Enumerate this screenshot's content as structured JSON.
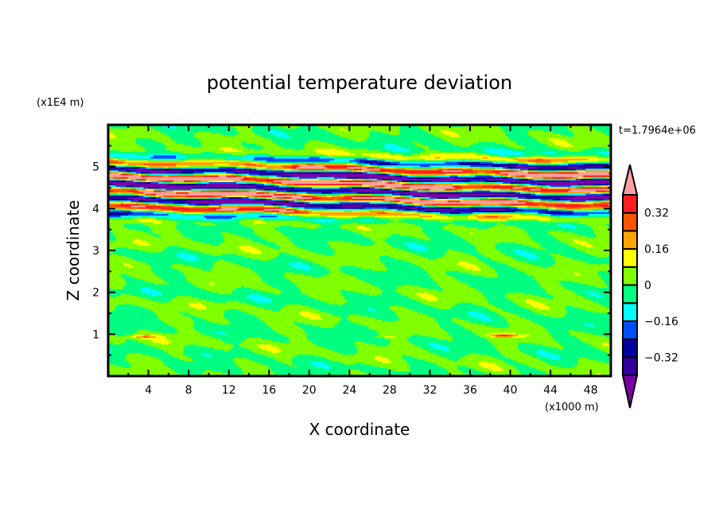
{
  "chart_data": {
    "type": "heatmap",
    "subtype": "filled-contour",
    "title": "potential temperature deviation",
    "xlabel": "X coordinate",
    "ylabel": "Z coordinate",
    "x_unit": "(x1000 m)",
    "y_unit": "(x1E4 m)",
    "time_label": "t=1.7964e+06",
    "xlim": [
      0,
      50
    ],
    "ylim": [
      0,
      6
    ],
    "x_ticks": [
      4,
      8,
      12,
      16,
      20,
      24,
      28,
      32,
      36,
      40,
      44,
      48
    ],
    "x_tick_labels": [
      "4",
      "8",
      "12",
      "16",
      "20",
      "24",
      "28",
      "32",
      "36",
      "40",
      "44",
      "48"
    ],
    "y_ticks": [
      1,
      2,
      3,
      4,
      5
    ],
    "y_tick_labels": [
      "1",
      "2",
      "3",
      "4",
      "5"
    ],
    "contour_levels": [
      -0.4,
      -0.32,
      -0.24,
      -0.16,
      -0.08,
      0,
      0.08,
      0.16,
      0.24,
      0.32,
      0.4
    ],
    "level_colors": [
      "#7a00a8",
      "#3300a0",
      "#0000a0",
      "#0050ff",
      "#00ffff",
      "#00ff80",
      "#80ff00",
      "#ffff00",
      "#ffa500",
      "#ff5500",
      "#ff2020",
      "#ffa0a0"
    ],
    "colorbar_labels": [
      {
        "value": 0.32,
        "text": "0.32"
      },
      {
        "value": 0.16,
        "text": "0.16"
      },
      {
        "value": 0,
        "text": "0"
      },
      {
        "value": -0.16,
        "text": "−0.16"
      },
      {
        "value": -0.32,
        "text": "−0.32"
      }
    ],
    "field_model": {
      "layered_wave": {
        "center_z": 4.5,
        "halfwidth_z": 0.7,
        "amplitude": 0.47,
        "wavelength_z": 0.36,
        "trough_z_by_x": [
          [
            0,
            4.95
          ],
          [
            10,
            4.9
          ],
          [
            18,
            4.85
          ],
          [
            25,
            4.77
          ],
          [
            35,
            4.7
          ],
          [
            45,
            4.64
          ],
          [
            50,
            4.62
          ]
        ]
      },
      "background_amplitude": 0.06,
      "local_anomalies": [
        {
          "x": 3.5,
          "z": 0.95,
          "value": 0.2
        },
        {
          "x": 39.5,
          "z": 0.97,
          "value": 0.3
        },
        {
          "x": 27.5,
          "z": 0.95,
          "value": 0.1
        }
      ]
    }
  }
}
